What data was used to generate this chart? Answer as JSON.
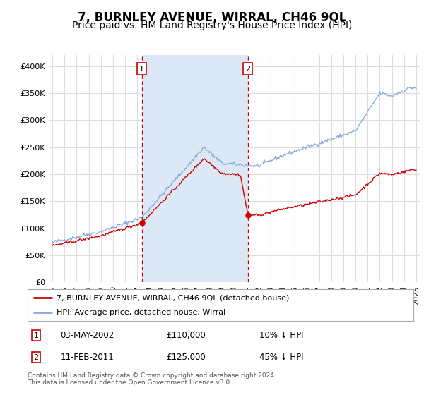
{
  "title": "7, BURNLEY AVENUE, WIRRAL, CH46 9QL",
  "subtitle": "Price paid vs. HM Land Registry's House Price Index (HPI)",
  "title_fontsize": 12,
  "subtitle_fontsize": 10,
  "ylim": [
    0,
    420000
  ],
  "yticks": [
    0,
    50000,
    100000,
    150000,
    200000,
    250000,
    300000,
    350000,
    400000
  ],
  "ytick_labels": [
    "£0",
    "£50K",
    "£100K",
    "£150K",
    "£200K",
    "£250K",
    "£300K",
    "£350K",
    "£400K"
  ],
  "plot_bg_color": "#ffffff",
  "fig_bg_color": "#ffffff",
  "grid_color": "#dddddd",
  "red_line_color": "#cc0000",
  "blue_line_color": "#88aadd",
  "shade_color": "#dce8f5",
  "marker1_price": 110000,
  "marker1_year": 2002.37,
  "marker2_price": 125000,
  "marker2_year": 2011.12,
  "legend_red": "7, BURNLEY AVENUE, WIRRAL, CH46 9QL (detached house)",
  "legend_blue": "HPI: Average price, detached house, Wirral",
  "footnote": "Contains HM Land Registry data © Crown copyright and database right 2024.\nThis data is licensed under the Open Government Licence v3.0.",
  "transaction1_date": "03-MAY-2002",
  "transaction1_price": "£110,000",
  "transaction1_hpi": "10% ↓ HPI",
  "transaction2_date": "11-FEB-2011",
  "transaction2_price": "£125,000",
  "transaction2_hpi": "45% ↓ HPI"
}
